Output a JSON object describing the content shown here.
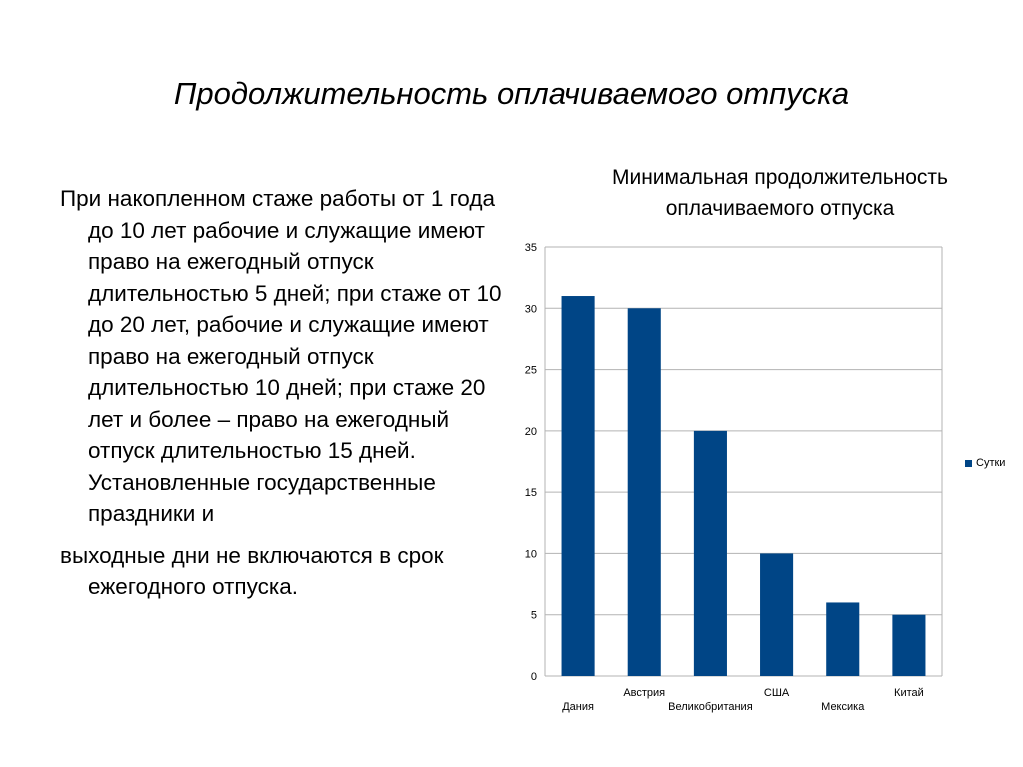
{
  "slide": {
    "title": "Продолжительность оплачиваемого отпуска",
    "body_para_1": "При накопленном стаже работы от 1 года до 10 лет рабочие и служащие имеют право на ежегодный отпуск длительностью 5 дней; при стаже от 10 до 20 лет, рабочие и служащие имеют право на ежегодный отпуск длительностью 10 дней; при стаже 20 лет и более – право на ежегодный отпуск длительностью 15 дней. Установленные государственные праздники и",
    "body_para_2": "выходные дни не  включаются в срок ежегодного отпуска."
  },
  "chart_data": {
    "type": "bar",
    "title": "Минимальная продолжительность оплачиваемого отпуска",
    "categories": [
      "Дания",
      "Австрия",
      "Великобритания",
      "США",
      "Мексика",
      "Китай"
    ],
    "series": [
      {
        "name": "Сутки",
        "values": [
          31,
          30,
          20,
          10,
          6,
          5
        ],
        "color": "#004586"
      }
    ],
    "ylim": [
      0,
      35
    ],
    "yticks": [
      0,
      5,
      10,
      15,
      20,
      25,
      30,
      35
    ],
    "grid": true,
    "legend": "right",
    "xlabel": "",
    "ylabel": ""
  }
}
